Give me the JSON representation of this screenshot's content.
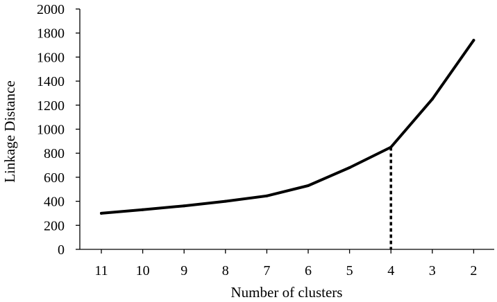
{
  "chart_data": {
    "type": "line",
    "title": "",
    "xlabel": "Number of clusters",
    "ylabel": "Linkage Distance",
    "categories": [
      "11",
      "10",
      "9",
      "8",
      "7",
      "6",
      "5",
      "4",
      "3",
      "2"
    ],
    "series": [
      {
        "values": [
          300,
          330,
          362,
          400,
          445,
          530,
          680,
          850,
          1250,
          1740
        ]
      }
    ],
    "ylim": [
      0,
      2000
    ],
    "yticks": [
      "0",
      "200",
      "400",
      "600",
      "800",
      "1000",
      "1200",
      "1400",
      "1600",
      "1800",
      "2000"
    ],
    "grid": false,
    "legend": "none",
    "marker_line": {
      "category": "4",
      "value": 850,
      "style": "dotted"
    },
    "colors": {
      "line": "#000000",
      "axis": "#000000"
    }
  }
}
